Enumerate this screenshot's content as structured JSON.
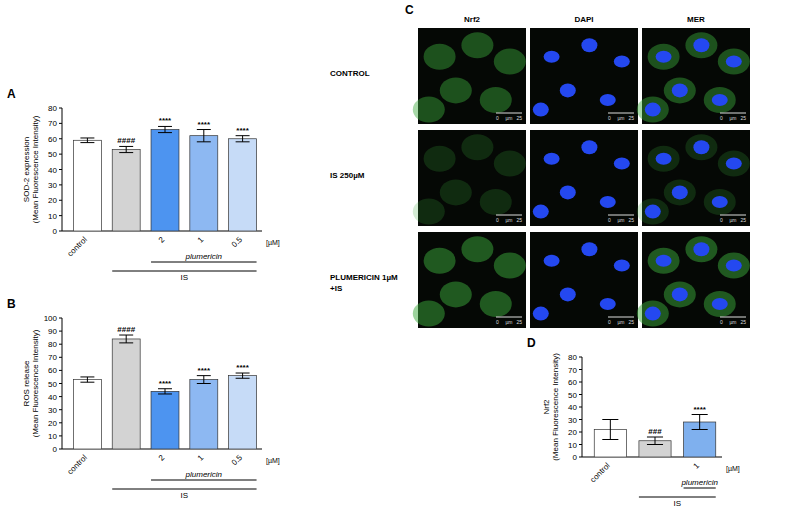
{
  "chart_data": [
    {
      "type": "bar",
      "panel": "A",
      "y_label": "SOD-2 expression (Mean Fluorescence Intensity)",
      "categories": [
        "control",
        null,
        "2",
        "1",
        "0.5"
      ],
      "values": [
        59,
        53,
        66,
        62,
        60
      ],
      "errors": [
        1.5,
        2,
        2,
        4,
        2
      ],
      "colors": [
        "#ffffff",
        "#d3d3d3",
        "#4d94f0",
        "#8db8f2",
        "#c6dbf7"
      ],
      "ylim": [
        0,
        80
      ],
      "yticks": [
        0,
        10,
        20,
        30,
        40,
        50,
        60,
        70,
        80
      ],
      "annotations": [
        {
          "index": 1,
          "text": "####"
        },
        {
          "index": 2,
          "text": "****"
        },
        {
          "index": 3,
          "text": "****"
        },
        {
          "index": 4,
          "text": "****"
        }
      ],
      "groups": [
        {
          "label": "plumericin",
          "from": 2,
          "to": 4
        },
        {
          "label": "IS",
          "from": 1,
          "to": 4
        }
      ],
      "unit_label": "[µM]"
    },
    {
      "type": "bar",
      "panel": "B",
      "y_label": "ROS release (Mean Fluorescence Intensity)",
      "categories": [
        "control",
        null,
        "2",
        "1",
        "0.5"
      ],
      "values": [
        53,
        84,
        44,
        53,
        56
      ],
      "errors": [
        2,
        3,
        2,
        3,
        2
      ],
      "colors": [
        "#ffffff",
        "#d3d3d3",
        "#4d94f0",
        "#8db8f2",
        "#c6dbf7"
      ],
      "ylim": [
        0,
        100
      ],
      "yticks": [
        0,
        10,
        20,
        30,
        40,
        50,
        60,
        70,
        80,
        90,
        100
      ],
      "annotations": [
        {
          "index": 1,
          "text": "####"
        },
        {
          "index": 2,
          "text": "****"
        },
        {
          "index": 3,
          "text": "****"
        },
        {
          "index": 4,
          "text": "****"
        }
      ],
      "groups": [
        {
          "label": "plumericin",
          "from": 2,
          "to": 4
        },
        {
          "label": "IS",
          "from": 1,
          "to": 4
        }
      ],
      "unit_label": "[µM]"
    },
    {
      "type": "bar",
      "panel": "D",
      "y_label": "Nrf2 (Mean Fluorescence Intensity)",
      "categories": [
        "control",
        null,
        "1"
      ],
      "values": [
        22,
        13,
        28
      ],
      "errors": [
        8,
        3,
        6
      ],
      "colors": [
        "#ffffff",
        "#d3d3d3",
        "#7fb0ee"
      ],
      "ylim": [
        0,
        80
      ],
      "yticks": [
        0,
        10,
        20,
        30,
        40,
        50,
        60,
        70,
        80
      ],
      "annotations": [
        {
          "index": 1,
          "text": "###"
        },
        {
          "index": 2,
          "text": "****"
        }
      ],
      "groups": [
        {
          "label": "plumericin",
          "from": 2,
          "to": 2
        },
        {
          "label": "IS",
          "from": 1,
          "to": 2
        }
      ],
      "unit_label": "[µM]"
    }
  ],
  "image_panel": {
    "panel": "C",
    "columns": [
      "Nrf2",
      "DAPI",
      "MER"
    ],
    "rows": [
      "CONTROL",
      "IS 250µM",
      "PLUMERICIN 1µM +IS"
    ],
    "scale_bar": [
      "0",
      "µm",
      "25"
    ]
  }
}
